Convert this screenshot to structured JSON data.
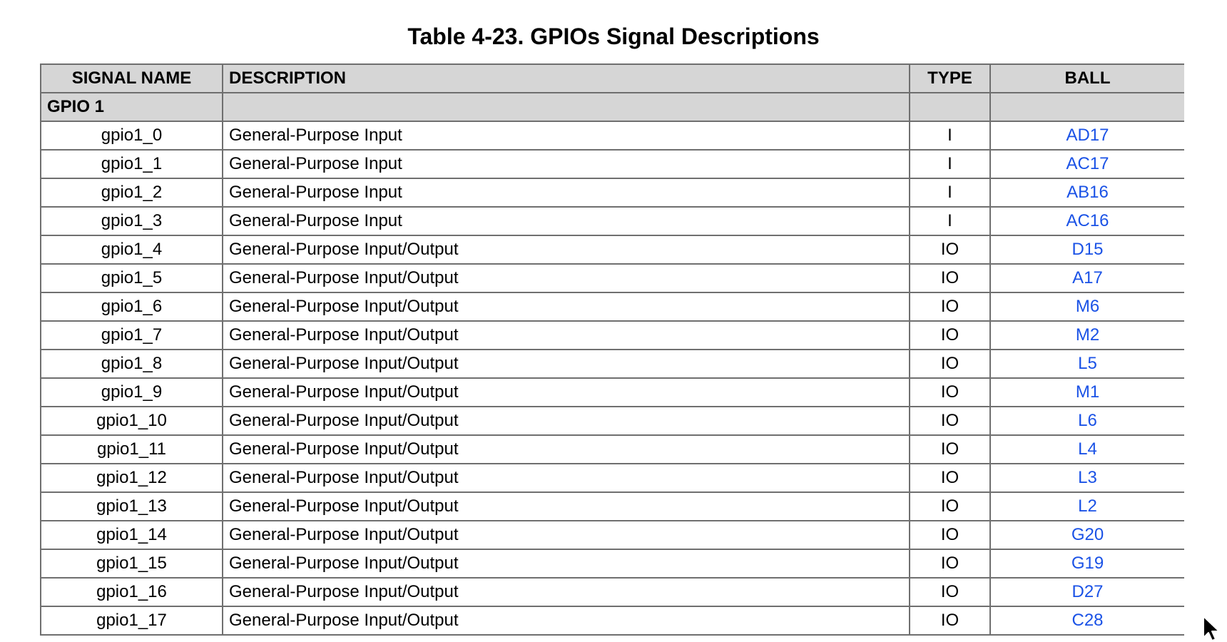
{
  "title": "Table 4-23. GPIOs Signal Descriptions",
  "columns": {
    "signal_name": "SIGNAL NAME",
    "description": "DESCRIPTION",
    "type": "TYPE",
    "ball": "BALL"
  },
  "group": {
    "label": "GPIO 1"
  },
  "rows": [
    {
      "name": "gpio1_0",
      "description": "General-Purpose Input",
      "type": "I",
      "ball": "AD17"
    },
    {
      "name": "gpio1_1",
      "description": "General-Purpose Input",
      "type": "I",
      "ball": "AC17"
    },
    {
      "name": "gpio1_2",
      "description": "General-Purpose Input",
      "type": "I",
      "ball": "AB16"
    },
    {
      "name": "gpio1_3",
      "description": "General-Purpose Input",
      "type": "I",
      "ball": "AC16"
    },
    {
      "name": "gpio1_4",
      "description": "General-Purpose Input/Output",
      "type": "IO",
      "ball": "D15"
    },
    {
      "name": "gpio1_5",
      "description": "General-Purpose Input/Output",
      "type": "IO",
      "ball": "A17"
    },
    {
      "name": "gpio1_6",
      "description": "General-Purpose Input/Output",
      "type": "IO",
      "ball": "M6"
    },
    {
      "name": "gpio1_7",
      "description": "General-Purpose Input/Output",
      "type": "IO",
      "ball": "M2"
    },
    {
      "name": "gpio1_8",
      "description": "General-Purpose Input/Output",
      "type": "IO",
      "ball": "L5"
    },
    {
      "name": "gpio1_9",
      "description": "General-Purpose Input/Output",
      "type": "IO",
      "ball": "M1"
    },
    {
      "name": "gpio1_10",
      "description": "General-Purpose Input/Output",
      "type": "IO",
      "ball": "L6"
    },
    {
      "name": "gpio1_11",
      "description": "General-Purpose Input/Output",
      "type": "IO",
      "ball": "L4"
    },
    {
      "name": "gpio1_12",
      "description": "General-Purpose Input/Output",
      "type": "IO",
      "ball": "L3"
    },
    {
      "name": "gpio1_13",
      "description": "General-Purpose Input/Output",
      "type": "IO",
      "ball": "L2"
    },
    {
      "name": "gpio1_14",
      "description": "General-Purpose Input/Output",
      "type": "IO",
      "ball": "G20"
    },
    {
      "name": "gpio1_15",
      "description": "General-Purpose Input/Output",
      "type": "IO",
      "ball": "G19"
    },
    {
      "name": "gpio1_16",
      "description": "General-Purpose Input/Output",
      "type": "IO",
      "ball": "D27"
    },
    {
      "name": "gpio1_17",
      "description": "General-Purpose Input/Output",
      "type": "IO",
      "ball": "C28"
    }
  ],
  "colors": {
    "header_bg": "#d6d6d6",
    "border": "#6f6f6f",
    "link": "#1a52e6"
  },
  "icons": {
    "cursor": "mouse-pointer-icon"
  }
}
